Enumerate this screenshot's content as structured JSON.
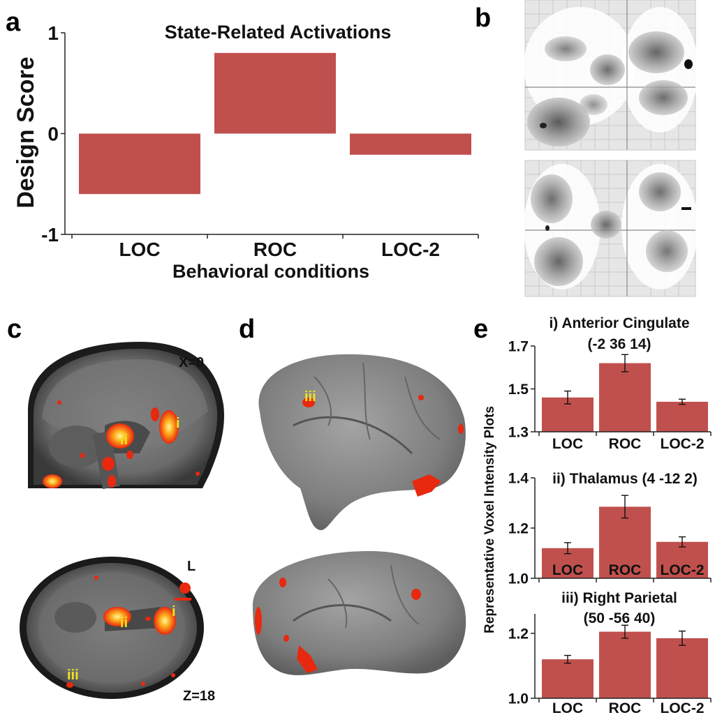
{
  "panels": {
    "a": {
      "letter": "a"
    },
    "b": {
      "letter": "b"
    },
    "c": {
      "letter": "c",
      "sagittal_label": "X=0",
      "axial_label": "Z=18",
      "side_label": "L",
      "roi_labels": [
        "i",
        "ii",
        "i",
        "ii",
        "iii"
      ]
    },
    "d": {
      "letter": "d",
      "roi_label": "iii"
    },
    "e": {
      "letter": "e",
      "ylabel": "Representative Voxel Intensity Plots"
    }
  },
  "colors": {
    "bar": "#c0504d",
    "bar_edge": "#8b3330",
    "activation": "#e8280f",
    "activation_core": "#ffd21e",
    "roi_label": "#f2e21c",
    "brain_gray": "#7d7d7d",
    "glass_gray": "#d9d9d9"
  },
  "chart_data": [
    {
      "id": "a",
      "type": "bar",
      "title": "State-Related Activations",
      "categories": [
        "LOC",
        "ROC",
        "LOC-2"
      ],
      "values": [
        -0.6,
        0.8,
        -0.21
      ],
      "xlabel": "Behavioral conditions",
      "ylabel": "Design Score",
      "ylim": [
        -1,
        1
      ],
      "yticks": [
        -1,
        0,
        1
      ],
      "ytick_labels": [
        "-1",
        "0",
        "1"
      ],
      "grid": false
    },
    {
      "id": "e-i",
      "type": "bar",
      "title": "i) Anterior Cingulate",
      "subtitle": "(-2 36 14)",
      "categories": [
        "LOC",
        "ROC",
        "LOC-2"
      ],
      "values": [
        1.46,
        1.62,
        1.44
      ],
      "errors": [
        0.03,
        0.04,
        0.012
      ],
      "ylim": [
        1.3,
        1.7
      ],
      "yticks": [
        1.3,
        1.5,
        1.7
      ],
      "ytick_labels": [
        "1.3",
        "1.5",
        "1.7"
      ],
      "grid": false
    },
    {
      "id": "e-ii",
      "type": "bar",
      "title": "ii) Thalamus (4 -12 2)",
      "subtitle": "",
      "categories": [
        "LOC",
        "ROC",
        "LOC-2"
      ],
      "values": [
        1.12,
        1.285,
        1.145
      ],
      "errors": [
        0.022,
        0.045,
        0.02
      ],
      "ylim": [
        1.0,
        1.4
      ],
      "yticks": [
        1.0,
        1.2,
        1.4
      ],
      "ytick_labels": [
        "1.0",
        "1.2",
        "1.4"
      ],
      "grid": false
    },
    {
      "id": "e-iii",
      "type": "bar",
      "title": "iii) Right Parietal",
      "subtitle": "(50 -56 40)",
      "categories": [
        "LOC",
        "ROC",
        "LOC-2"
      ],
      "values": [
        1.12,
        1.205,
        1.185
      ],
      "errors": [
        0.012,
        0.02,
        0.022
      ],
      "ylim": [
        1.0,
        1.26
      ],
      "yticks": [
        1.0,
        1.2
      ],
      "ytick_labels": [
        "1.0",
        "1.2"
      ],
      "grid": false
    }
  ]
}
